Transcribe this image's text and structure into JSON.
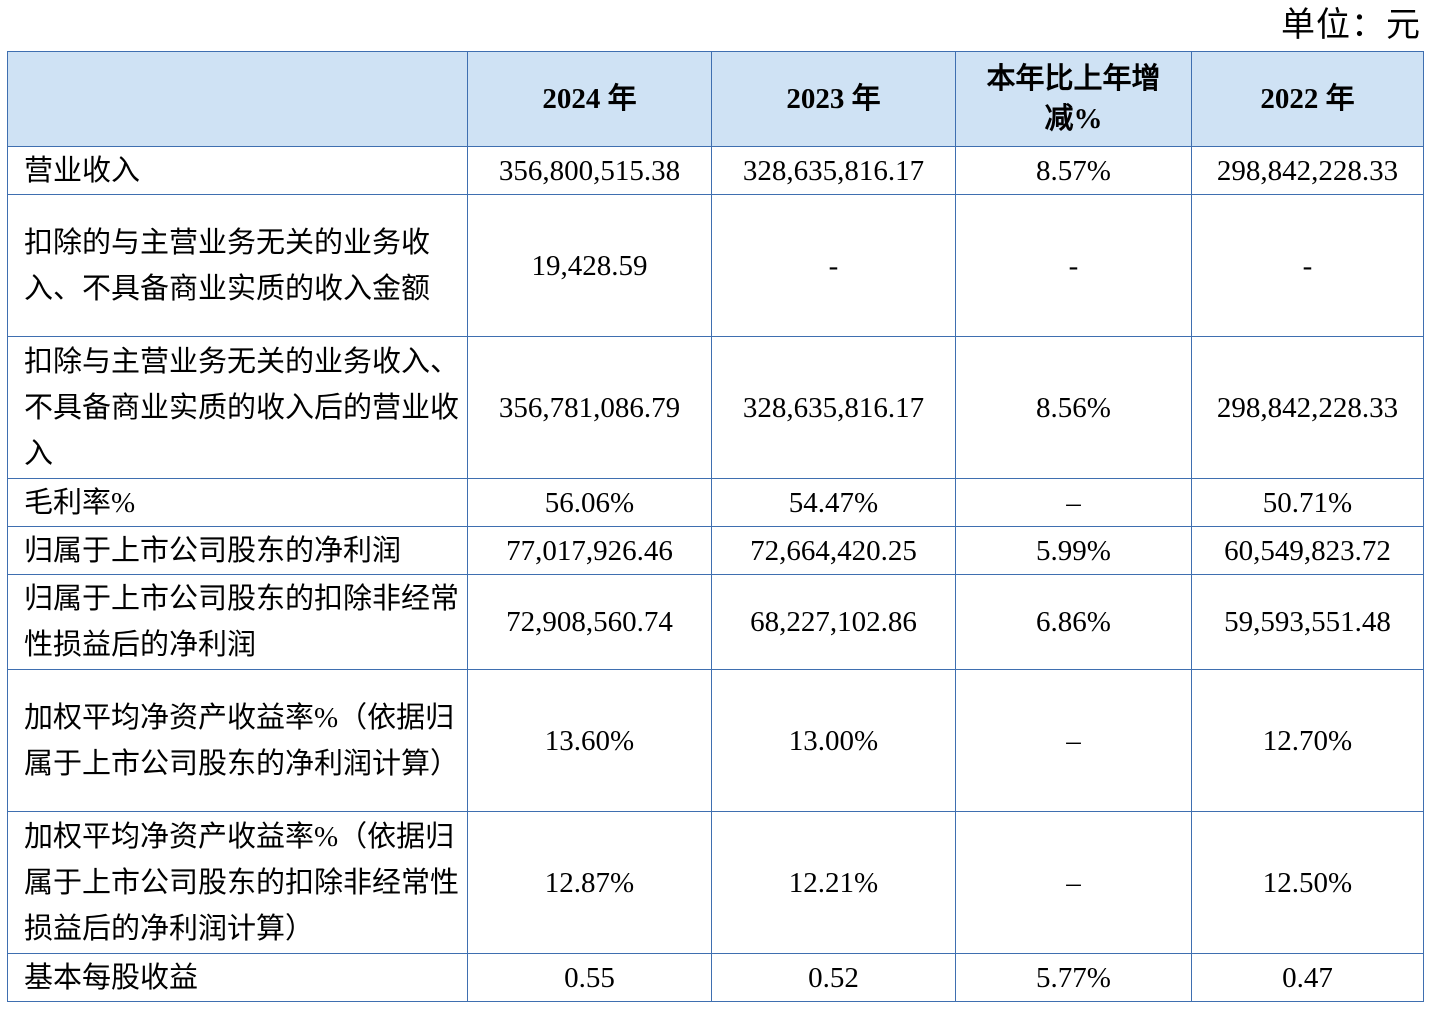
{
  "unit_label": "单位：元",
  "headers": [
    "",
    "2024 年",
    "2023 年",
    "本年比上年增减%",
    "2022 年"
  ],
  "rows": [
    {
      "label": "营业收入",
      "v2024": "356,800,515.38",
      "v2023": "328,635,816.17",
      "change": "8.57%",
      "v2022": "298,842,228.33"
    },
    {
      "label": "扣除的与主营业务无关的业务收入、不具备商业实质的收入金额",
      "v2024": "19,428.59",
      "v2023": "-",
      "change": "-",
      "v2022": "-"
    },
    {
      "label": "扣除与主营业务无关的业务收入、不具备商业实质的收入后的营业收入",
      "v2024": "356,781,086.79",
      "v2023": "328,635,816.17",
      "change": "8.56%",
      "v2022": "298,842,228.33"
    },
    {
      "label": "毛利率%",
      "v2024": "56.06%",
      "v2023": "54.47%",
      "change": "–",
      "v2022": "50.71%"
    },
    {
      "label": "归属于上市公司股东的净利润",
      "v2024": "77,017,926.46",
      "v2023": "72,664,420.25",
      "change": "5.99%",
      "v2022": "60,549,823.72"
    },
    {
      "label": "归属于上市公司股东的扣除非经常性损益后的净利润",
      "v2024": "72,908,560.74",
      "v2023": "68,227,102.86",
      "change": "6.86%",
      "v2022": "59,593,551.48"
    },
    {
      "label": "加权平均净资产收益率%（依据归属于上市公司股东的净利润计算）",
      "v2024": "13.60%",
      "v2023": "13.00%",
      "change": "–",
      "v2022": "12.70%"
    },
    {
      "label": "加权平均净资产收益率%（依据归属于上市公司股东的扣除非经常性损益后的净利润计算）",
      "v2024": "12.87%",
      "v2023": "12.21%",
      "change": "–",
      "v2022": "12.50%"
    },
    {
      "label": "基本每股收益",
      "v2024": "0.55",
      "v2023": "0.52",
      "change": "5.77%",
      "v2022": "0.47"
    }
  ]
}
